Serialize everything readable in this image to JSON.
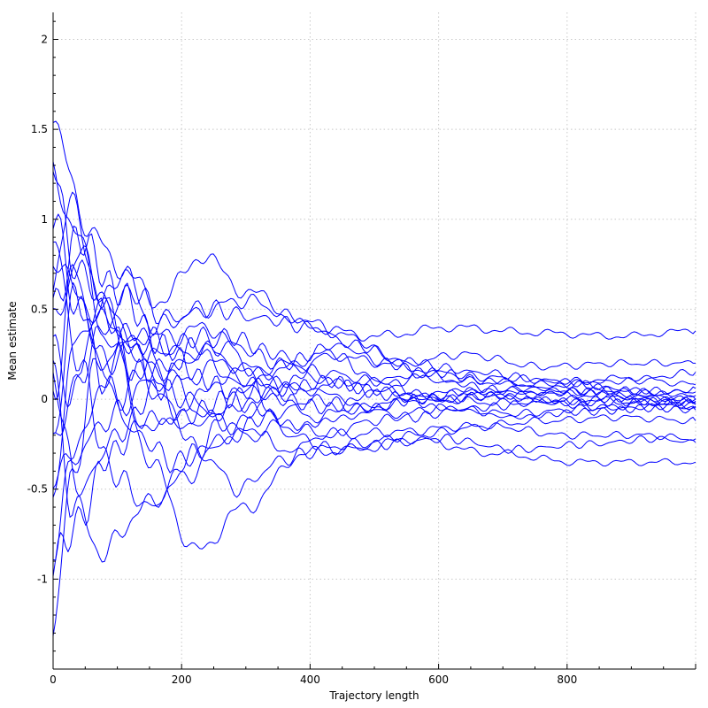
{
  "chart_data": {
    "type": "line",
    "title": "",
    "xlabel": "Trajectory length",
    "ylabel": "Mean estimate",
    "xlim": [
      0,
      1000
    ],
    "ylim": [
      -1.5,
      2.15
    ],
    "xticks": [
      0,
      200,
      400,
      600,
      800
    ],
    "yticks": [
      -1,
      -0.5,
      0,
      0.5,
      1,
      1.5,
      2
    ],
    "xtick_labels": [
      "0",
      "200",
      "400",
      "600",
      "800"
    ],
    "ytick_labels": [
      "-1",
      "-0.5",
      "0",
      "0.5",
      "1",
      "1.5",
      "2"
    ],
    "grid": true,
    "legend": "none",
    "line_color": "#0000ff",
    "series": [
      {
        "x": [
          0,
          30,
          80,
          150,
          200,
          280,
          380,
          480,
          600,
          720,
          850,
          1000
        ],
        "y": [
          0.6,
          1.1,
          0.5,
          -0.2,
          -0.05,
          0.15,
          0.05,
          0.1,
          0.0,
          0.05,
          0.02,
          0.0
        ]
      },
      {
        "x": [
          0,
          40,
          100,
          170,
          230,
          300,
          400,
          500,
          620,
          750,
          880,
          1000
        ],
        "y": [
          -0.3,
          0.2,
          0.7,
          0.55,
          0.8,
          0.6,
          0.4,
          0.35,
          0.4,
          0.37,
          0.35,
          0.38
        ]
      },
      {
        "x": [
          0,
          35,
          90,
          160,
          220,
          300,
          390,
          470,
          560,
          680,
          820,
          1000
        ],
        "y": [
          1.3,
          0.9,
          0.3,
          -0.4,
          -0.85,
          -0.6,
          -0.3,
          -0.28,
          -0.22,
          -0.3,
          -0.35,
          -0.35
        ]
      },
      {
        "x": [
          0,
          30,
          90,
          150,
          200,
          260,
          340,
          420,
          520,
          640,
          780,
          900,
          1000
        ],
        "y": [
          0.8,
          0.6,
          0.4,
          0.2,
          0.1,
          0.2,
          0.15,
          0.25,
          0.2,
          0.1,
          0.08,
          0.12,
          0.08
        ]
      },
      {
        "x": [
          0,
          40,
          110,
          180,
          240,
          320,
          400,
          480,
          580,
          700,
          820,
          920,
          1000
        ],
        "y": [
          -0.5,
          -0.2,
          0.3,
          0.35,
          0.4,
          0.15,
          -0.1,
          -0.05,
          0.0,
          -0.02,
          0.0,
          -0.02,
          -0.04
        ]
      },
      {
        "x": [
          0,
          30,
          80,
          140,
          200,
          270,
          350,
          440,
          540,
          650,
          770,
          880,
          1000
        ],
        "y": [
          0.2,
          -0.6,
          -0.85,
          -0.6,
          -0.45,
          -0.2,
          -0.15,
          -0.2,
          -0.18,
          -0.15,
          -0.12,
          -0.1,
          -0.12
        ]
      },
      {
        "x": [
          0,
          45,
          100,
          160,
          230,
          300,
          380,
          460,
          540,
          640,
          760,
          880,
          1000
        ],
        "y": [
          1.6,
          1.0,
          0.75,
          0.4,
          0.5,
          0.55,
          0.45,
          0.35,
          0.2,
          0.25,
          0.18,
          0.2,
          0.2
        ]
      },
      {
        "x": [
          0,
          30,
          70,
          130,
          180,
          240,
          310,
          380,
          470,
          560,
          680,
          800,
          920,
          1000
        ],
        "y": [
          -1.3,
          -0.4,
          0.2,
          0.4,
          0.1,
          -0.1,
          -0.2,
          -0.3,
          -0.25,
          -0.2,
          -0.15,
          -0.2,
          -0.2,
          -0.22
        ]
      },
      {
        "x": [
          0,
          40,
          110,
          170,
          230,
          290,
          350,
          420,
          500,
          600,
          720,
          840,
          950,
          1000
        ],
        "y": [
          0.4,
          0.8,
          0.35,
          0.0,
          -0.3,
          -0.5,
          -0.35,
          -0.2,
          -0.12,
          -0.05,
          -0.08,
          -0.05,
          -0.02,
          -0.02
        ]
      },
      {
        "x": [
          0,
          30,
          80,
          140,
          210,
          280,
          350,
          420,
          500,
          580,
          680,
          800,
          900,
          1000
        ],
        "y": [
          0.0,
          0.7,
          0.2,
          0.35,
          0.25,
          0.3,
          0.2,
          0.15,
          0.1,
          0.15,
          0.12,
          0.1,
          0.1,
          0.15
        ]
      },
      {
        "x": [
          0,
          35,
          90,
          150,
          210,
          280,
          350,
          430,
          510,
          600,
          720,
          850,
          950,
          1000
        ],
        "y": [
          -0.8,
          -0.3,
          -0.1,
          0.1,
          0.0,
          -0.15,
          0.05,
          0.25,
          0.1,
          0.0,
          0.02,
          0.05,
          0.03,
          0.06
        ]
      },
      {
        "x": [
          0,
          40,
          100,
          160,
          230,
          300,
          370,
          440,
          520,
          610,
          720,
          830,
          940,
          1000
        ],
        "y": [
          1.0,
          0.5,
          0.0,
          0.25,
          0.35,
          0.1,
          -0.2,
          -0.28,
          -0.25,
          -0.22,
          -0.28,
          -0.25,
          -0.22,
          -0.24
        ]
      },
      {
        "x": [
          0,
          30,
          70,
          120,
          180,
          250,
          320,
          400,
          470,
          560,
          660,
          780,
          900,
          1000
        ],
        "y": [
          0.3,
          0.0,
          0.35,
          0.6,
          0.45,
          0.5,
          0.45,
          0.4,
          0.3,
          0.2,
          0.15,
          0.1,
          0.05,
          0.04
        ]
      },
      {
        "x": [
          0,
          35,
          80,
          130,
          190,
          260,
          330,
          410,
          480,
          560,
          650,
          760,
          880,
          1000
        ],
        "y": [
          -0.2,
          0.6,
          0.1,
          -0.2,
          -0.35,
          -0.25,
          -0.1,
          0.0,
          -0.05,
          -0.1,
          -0.05,
          -0.02,
          -0.05,
          -0.03
        ]
      },
      {
        "x": [
          0,
          40,
          90,
          150,
          220,
          290,
          360,
          440,
          520,
          600,
          700,
          820,
          920,
          1000
        ],
        "y": [
          0.9,
          0.2,
          -0.4,
          -0.6,
          -0.3,
          0.05,
          0.2,
          0.3,
          0.2,
          0.1,
          0.05,
          0.08,
          0.0,
          -0.01
        ]
      },
      {
        "x": [
          0,
          30,
          75,
          130,
          200,
          270,
          350,
          420,
          500,
          590,
          690,
          800,
          910,
          1000
        ],
        "y": [
          -0.6,
          0.3,
          0.5,
          0.15,
          0.2,
          0.35,
          0.25,
          0.1,
          0.05,
          0.0,
          0.02,
          -0.02,
          0.02,
          0.0
        ]
      },
      {
        "x": [
          0,
          40,
          100,
          160,
          220,
          280,
          350,
          430,
          510,
          590,
          680,
          790,
          900,
          1000
        ],
        "y": [
          0.1,
          -0.5,
          -0.2,
          0.05,
          0.3,
          0.1,
          0.0,
          -0.05,
          0.05,
          0.15,
          0.1,
          0.05,
          0.0,
          -0.05
        ]
      },
      {
        "x": [
          0,
          30,
          80,
          140,
          200,
          270,
          340,
          410,
          490,
          570,
          660,
          760,
          880,
          1000
        ],
        "y": [
          1.35,
          0.75,
          0.55,
          0.2,
          -0.1,
          0.0,
          0.1,
          0.05,
          -0.05,
          0.0,
          0.05,
          0.03,
          0.05,
          0.02
        ]
      },
      {
        "x": [
          0,
          35,
          90,
          150,
          210,
          280,
          350,
          430,
          520,
          610,
          720,
          830,
          930,
          1000
        ],
        "y": [
          -0.9,
          -0.7,
          -0.3,
          -0.1,
          -0.15,
          -0.05,
          0.05,
          0.1,
          0.02,
          -0.05,
          -0.1,
          -0.07,
          -0.05,
          -0.06
        ]
      },
      {
        "x": [
          0,
          40,
          100,
          170,
          240,
          310,
          380,
          460,
          540,
          630,
          740,
          850,
          950,
          1000
        ],
        "y": [
          0.5,
          0.9,
          0.6,
          0.3,
          0.1,
          -0.05,
          -0.15,
          -0.1,
          0.0,
          0.05,
          0.0,
          -0.02,
          -0.01,
          -0.02
        ]
      }
    ]
  }
}
